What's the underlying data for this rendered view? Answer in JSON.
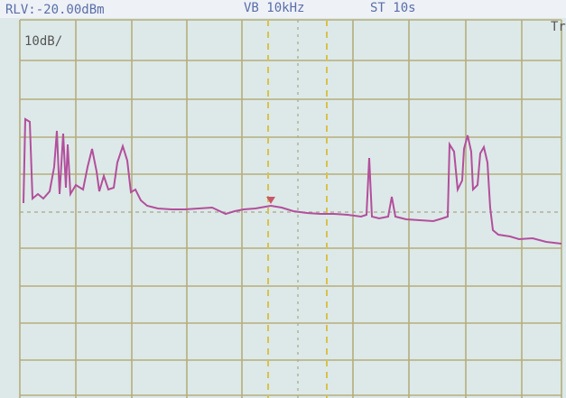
{
  "screen": {
    "ref_level": "RLV:-20.00dBm",
    "video_bandwidth": "VB 10kHz",
    "sweep_time": "ST 10s",
    "scale": "10dB/",
    "trace_label": "Tr"
  }
}
